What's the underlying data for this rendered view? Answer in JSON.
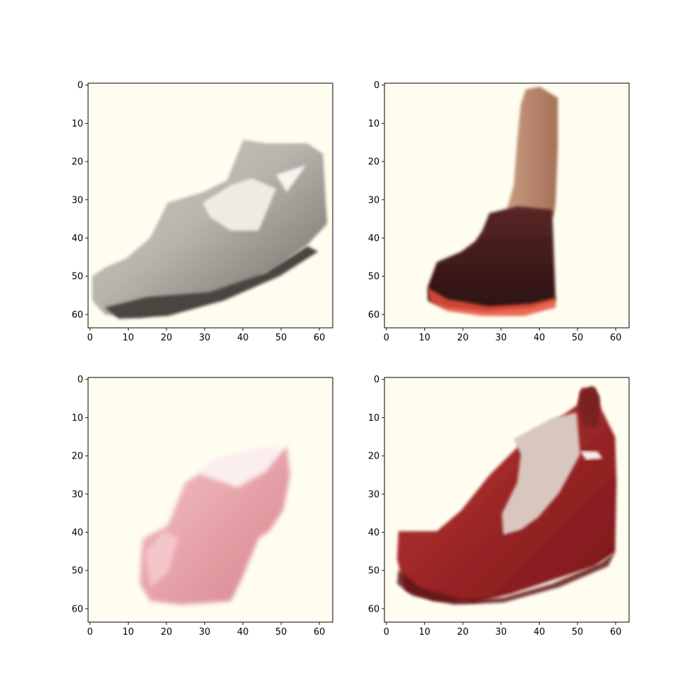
{
  "chart_data": [
    {
      "type": "heatmap",
      "content": "generated shoe image",
      "title": "",
      "xlabel": "",
      "ylabel": "",
      "xlim": [
        -0.5,
        63.5
      ],
      "ylim": [
        63.5,
        -0.5
      ],
      "xticks": [
        0,
        10,
        20,
        30,
        40,
        50,
        60
      ],
      "yticks": [
        0,
        10,
        20,
        30,
        40,
        50,
        60
      ],
      "background_color": "#fffdf0",
      "shoe_colors": [
        "#f2efe8",
        "#c4bfb8",
        "#7e7872",
        "#3f3a36"
      ]
    },
    {
      "type": "heatmap",
      "content": "generated shoe image",
      "title": "",
      "xlabel": "",
      "ylabel": "",
      "xlim": [
        -0.5,
        63.5
      ],
      "ylim": [
        63.5,
        -0.5
      ],
      "xticks": [
        0,
        10,
        20,
        30,
        40,
        50,
        60
      ],
      "yticks": [
        0,
        10,
        20,
        30,
        40,
        50,
        60
      ],
      "background_color": "#fffdf0",
      "shoe_colors": [
        "#d9b49a",
        "#b48366",
        "#4a1d1d",
        "#2f1212",
        "#e8503a"
      ]
    },
    {
      "type": "heatmap",
      "content": "generated shoe image",
      "title": "",
      "xlabel": "",
      "ylabel": "",
      "xlim": [
        -0.5,
        63.5
      ],
      "ylim": [
        63.5,
        -0.5
      ],
      "xticks": [
        0,
        10,
        20,
        30,
        40,
        50,
        60
      ],
      "yticks": [
        0,
        10,
        20,
        30,
        40,
        50,
        60
      ],
      "background_color": "#fffdf0",
      "shoe_colors": [
        "#fbeeee",
        "#f0b7bc",
        "#dc8f96",
        "#c97a82"
      ]
    },
    {
      "type": "heatmap",
      "content": "generated shoe image",
      "title": "",
      "xlabel": "",
      "ylabel": "",
      "xlim": [
        -0.5,
        63.5
      ],
      "ylim": [
        63.5,
        -0.5
      ],
      "xticks": [
        0,
        10,
        20,
        30,
        40,
        50,
        60
      ],
      "yticks": [
        0,
        10,
        20,
        30,
        40,
        50,
        60
      ],
      "background_color": "#fffdf0",
      "shoe_colors": [
        "#e0d2cc",
        "#b8362f",
        "#8e1a20",
        "#5e1216"
      ]
    }
  ]
}
